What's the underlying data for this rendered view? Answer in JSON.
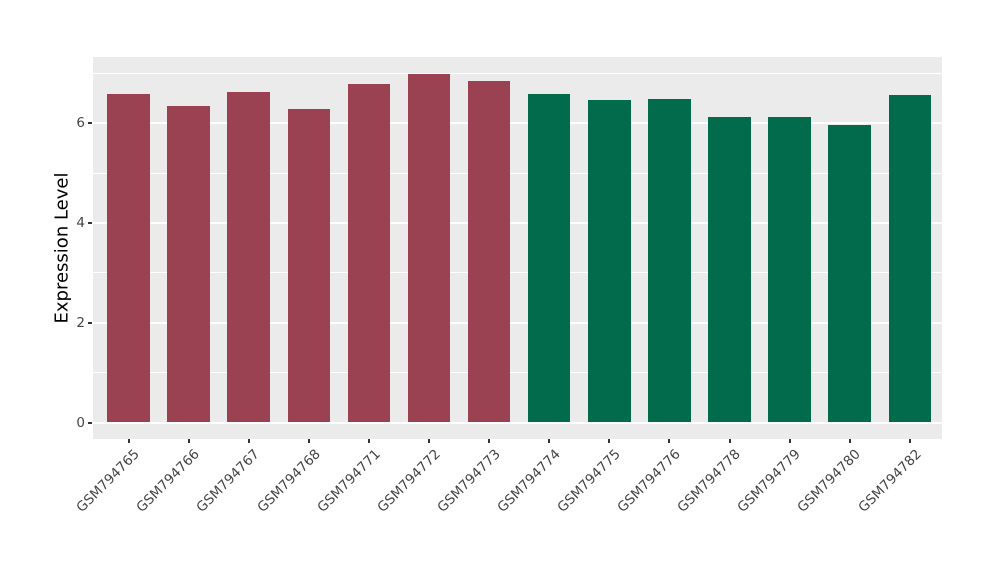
{
  "chart_data": {
    "type": "bar",
    "title": "",
    "xlabel": "",
    "ylabel": "Expression Level",
    "categories": [
      "GSM794765",
      "GSM794766",
      "GSM794767",
      "GSM794768",
      "GSM794771",
      "GSM794772",
      "GSM794773",
      "GSM794774",
      "GSM794775",
      "GSM794776",
      "GSM794778",
      "GSM794779",
      "GSM794780",
      "GSM794782"
    ],
    "values": [
      6.58,
      6.34,
      6.63,
      6.28,
      6.79,
      6.98,
      6.85,
      6.58,
      6.46,
      6.48,
      6.12,
      6.12,
      5.97,
      6.56
    ],
    "bar_colors": [
      "#9B4252",
      "#9B4252",
      "#9B4252",
      "#9B4252",
      "#9B4252",
      "#9B4252",
      "#9B4252",
      "#026B4B",
      "#026B4B",
      "#026B4B",
      "#026B4B",
      "#026B4B",
      "#026B4B",
      "#026B4B"
    ],
    "yticks": [
      0,
      2,
      4,
      6
    ],
    "minor_gridlines": [
      1,
      3,
      5,
      7
    ],
    "ylim": [
      -0.35,
      7.33
    ],
    "grid": true,
    "legend_position": "none",
    "xticklabel_rotation": 45,
    "panel_bg": "#EBEBEB",
    "grid_color": "#FFFFFF",
    "background": "#FFFFFF",
    "axis_text_color": "#444444",
    "axis_title_color": "#000000",
    "tick_mark_color": "#333333"
  }
}
